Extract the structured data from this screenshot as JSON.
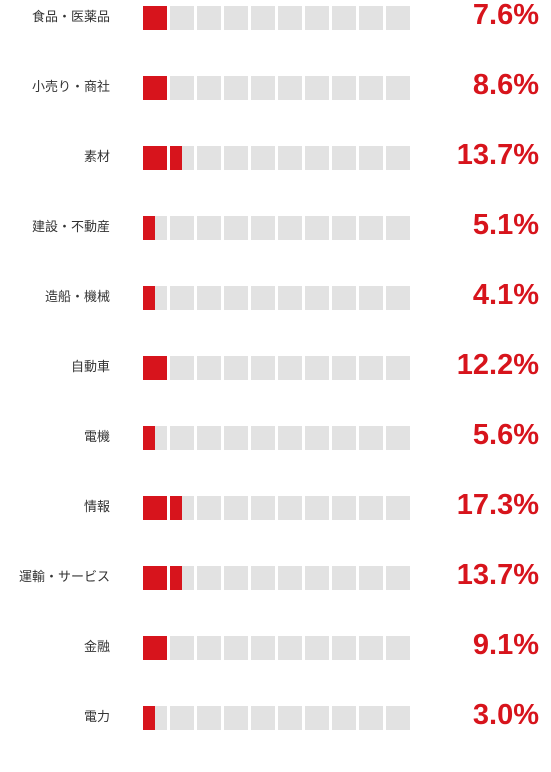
{
  "chart_data": {
    "type": "bar",
    "categories": [
      "食品・医薬品",
      "小売り・商社",
      "素材",
      "建設・不動産",
      "造船・機械",
      "自動車",
      "電機",
      "情報",
      "運輸・サービス",
      "金融",
      "電力"
    ],
    "labels": [
      "7.6%",
      "8.6%",
      "13.7%",
      "5.1%",
      "4.1%",
      "12.2%",
      "5.6%",
      "17.3%",
      "13.7%",
      "9.1%",
      "3.0%"
    ],
    "values": [
      7.6,
      8.6,
      13.7,
      5.1,
      4.1,
      12.2,
      5.6,
      17.3,
      13.7,
      9.1,
      3.0
    ],
    "fill_cells": [
      1,
      1,
      1.5,
      0.5,
      0.5,
      1,
      0.5,
      1.5,
      1.5,
      1,
      0.5
    ],
    "total_cells": 10,
    "title": "",
    "xlabel": "",
    "ylabel": ""
  },
  "colors": {
    "accent": "#d7141c",
    "track": "#e2e2e2",
    "label": "#333333",
    "background": "#ffffff"
  }
}
